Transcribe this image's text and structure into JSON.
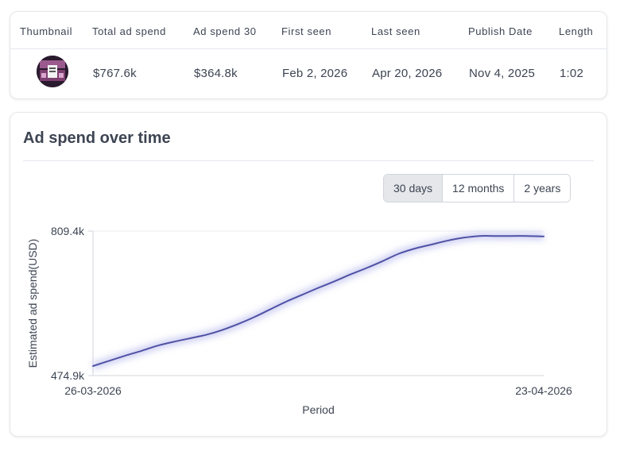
{
  "table": {
    "headers": {
      "thumbnail": "Thumbnail",
      "total_ad_spend": "Total ad spend",
      "ad_spend_30": "Ad spend 30",
      "first_seen": "First seen",
      "last_seen": "Last seen",
      "publish_date": "Publish Date",
      "length": "Length"
    },
    "row": {
      "total_ad_spend": "$767.6k",
      "ad_spend_30": "$364.8k",
      "first_seen": "Feb 2, 2026",
      "last_seen": "Apr 20, 2026",
      "publish_date": "Nov 4, 2025",
      "length": "1:02"
    }
  },
  "chart_card": {
    "title": "Ad spend over time",
    "ranges": [
      {
        "label": "30 days",
        "active": true
      },
      {
        "label": "12 months",
        "active": false
      },
      {
        "label": "2 years",
        "active": false
      }
    ]
  },
  "colors": {
    "line": "#4f52a4",
    "line_glow": "#c7c8f0",
    "axis": "#d1d5db",
    "gridline": "#ececf0",
    "text": "#3d4452"
  },
  "chart_data": {
    "type": "line",
    "title": "Ad spend over time",
    "xlabel": "Period",
    "ylabel": "Estimated ad spend(USD)",
    "x_tick_labels": [
      "26-03-2026",
      "23-04-2026"
    ],
    "y_tick_labels": [
      "474.9k",
      "809.4k"
    ],
    "ylim": [
      474.9,
      809.4
    ],
    "y_unit": "k USD",
    "x": [
      "2026-03-26",
      "2026-03-27",
      "2026-03-28",
      "2026-03-29",
      "2026-03-30",
      "2026-03-31",
      "2026-04-01",
      "2026-04-02",
      "2026-04-03",
      "2026-04-04",
      "2026-04-05",
      "2026-04-06",
      "2026-04-07",
      "2026-04-08",
      "2026-04-09",
      "2026-04-10",
      "2026-04-11",
      "2026-04-12",
      "2026-04-13",
      "2026-04-14",
      "2026-04-15",
      "2026-04-16",
      "2026-04-17",
      "2026-04-18",
      "2026-04-19",
      "2026-04-20",
      "2026-04-21",
      "2026-04-22",
      "2026-04-23"
    ],
    "series": [
      {
        "values": [
          497,
          509,
          521,
          532,
          544,
          553,
          561,
          569,
          580,
          594,
          610,
          628,
          646,
          662,
          678,
          693,
          709,
          724,
          740,
          757,
          769,
          778,
          787,
          794,
          798,
          798,
          798,
          798,
          797
        ]
      }
    ],
    "grid": false,
    "legend": "none"
  }
}
